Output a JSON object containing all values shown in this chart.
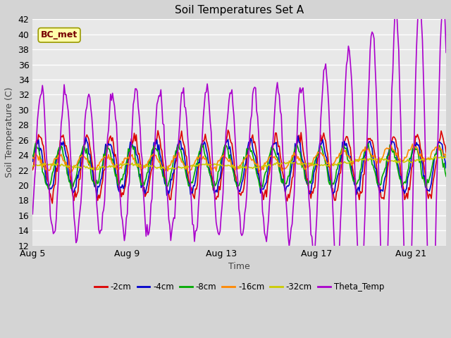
{
  "title": "Soil Temperatures Set A",
  "xlabel": "Time",
  "ylabel": "Soil Temperature (C)",
  "ylim": [
    12,
    42
  ],
  "yticks": [
    12,
    14,
    16,
    18,
    20,
    22,
    24,
    26,
    28,
    30,
    32,
    34,
    36,
    38,
    40,
    42
  ],
  "xtick_labels": [
    "Aug 5",
    "Aug 9",
    "Aug 13",
    "Aug 17",
    "Aug 21"
  ],
  "xtick_positions": [
    0,
    4,
    8,
    12,
    16
  ],
  "annotation_text": "BC_met",
  "bg_color": "#e0e0e0",
  "plot_bg_color": "#e8e8e8",
  "series": {
    "2cm": {
      "color": "#dd0000",
      "lw": 1.2
    },
    "4cm": {
      "color": "#0000cc",
      "lw": 1.2
    },
    "8cm": {
      "color": "#00aa00",
      "lw": 1.2
    },
    "16cm": {
      "color": "#ff8800",
      "lw": 1.2
    },
    "32cm": {
      "color": "#cccc00",
      "lw": 1.2
    },
    "Theta": {
      "color": "#aa00cc",
      "lw": 1.2
    }
  },
  "legend_labels": [
    "-2cm",
    "-4cm",
    "-8cm",
    "-16cm",
    "-32cm",
    "Theta_Temp"
  ],
  "legend_colors": [
    "#dd0000",
    "#0000cc",
    "#00aa00",
    "#ff8800",
    "#cccc00",
    "#aa00cc"
  ],
  "n_days": 17.5,
  "n_points": 420
}
